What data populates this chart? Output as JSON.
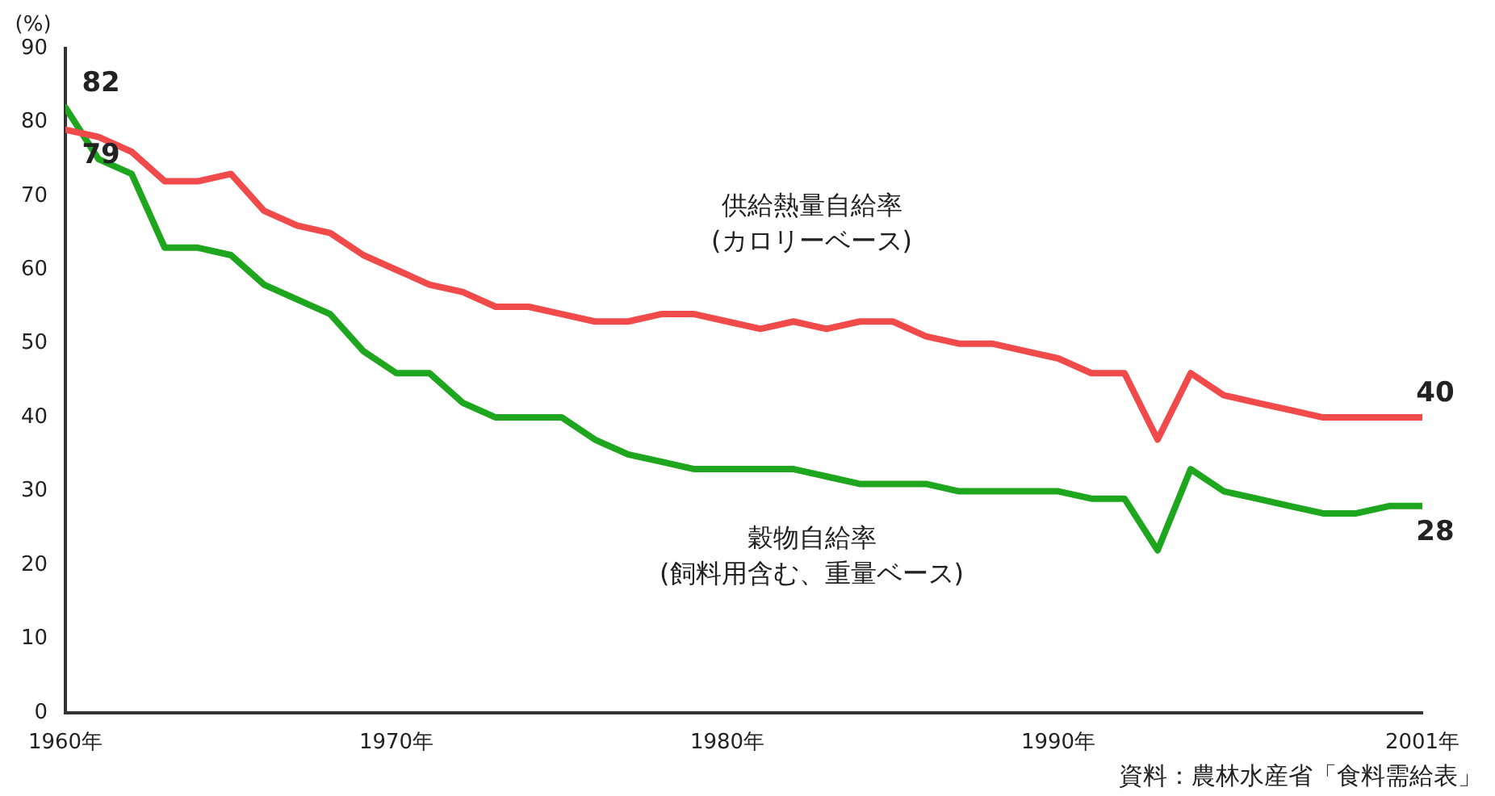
{
  "chart_data": {
    "type": "line",
    "ylabel": "(%)",
    "annotations": [
      "資料：農林水産省「食料需給表」"
    ],
    "x": [
      1960,
      1961,
      1962,
      1963,
      1964,
      1965,
      1966,
      1967,
      1968,
      1969,
      1970,
      1971,
      1972,
      1973,
      1974,
      1975,
      1976,
      1977,
      1978,
      1979,
      1980,
      1981,
      1982,
      1983,
      1984,
      1985,
      1986,
      1987,
      1988,
      1989,
      1990,
      1991,
      1992,
      1993,
      1994,
      1995,
      1996,
      1997,
      1998,
      1999,
      2000,
      2001
    ],
    "series": [
      {
        "name": "供給熱量自給率\n(カロリーベース)",
        "color": "#f04a4a",
        "values": [
          79,
          78,
          76,
          72,
          72,
          73,
          68,
          66,
          65,
          62,
          60,
          58,
          57,
          55,
          55,
          54,
          53,
          53,
          54,
          54,
          53,
          52,
          53,
          52,
          53,
          53,
          51,
          50,
          50,
          49,
          48,
          46,
          46,
          37,
          46,
          43,
          42,
          41,
          40,
          40,
          40,
          40
        ],
        "value_labels": [
          "79",
          null,
          null,
          null,
          null,
          null,
          null,
          null,
          null,
          null,
          null,
          null,
          null,
          null,
          null,
          null,
          null,
          null,
          null,
          null,
          null,
          null,
          null,
          null,
          null,
          null,
          null,
          null,
          null,
          null,
          null,
          null,
          null,
          null,
          null,
          null,
          null,
          null,
          null,
          null,
          null,
          "40"
        ]
      },
      {
        "name": "穀物自給率\n(飼料用含む、重量ベース)",
        "color": "#1fa61f",
        "values": [
          82,
          75,
          73,
          63,
          63,
          62,
          58,
          56,
          54,
          49,
          46,
          46,
          42,
          40,
          40,
          40,
          37,
          35,
          34,
          33,
          33,
          33,
          33,
          32,
          31,
          31,
          31,
          30,
          30,
          30,
          30,
          29,
          29,
          22,
          33,
          30,
          29,
          28,
          27,
          27,
          28,
          28
        ],
        "value_labels": [
          "82",
          null,
          null,
          null,
          null,
          null,
          null,
          null,
          null,
          null,
          null,
          null,
          null,
          null,
          null,
          null,
          null,
          null,
          null,
          null,
          null,
          null,
          null,
          null,
          null,
          null,
          null,
          null,
          null,
          null,
          null,
          null,
          null,
          null,
          null,
          null,
          null,
          null,
          null,
          null,
          null,
          "28"
        ]
      }
    ],
    "xlim": [
      1960,
      2001
    ],
    "xticks": [
      {
        "value": 1960,
        "label": "1960年"
      },
      {
        "value": 1970,
        "label": "1970年"
      },
      {
        "value": 1980,
        "label": "1980年"
      },
      {
        "value": 1990,
        "label": "1990年"
      },
      {
        "value": 2001,
        "label": "2001年"
      }
    ],
    "ylim": [
      0,
      90
    ],
    "yticks": [
      0,
      10,
      20,
      30,
      40,
      50,
      60,
      70,
      80,
      90
    ],
    "grid": false,
    "legend": false,
    "marker": "none",
    "line_style": "solid"
  }
}
